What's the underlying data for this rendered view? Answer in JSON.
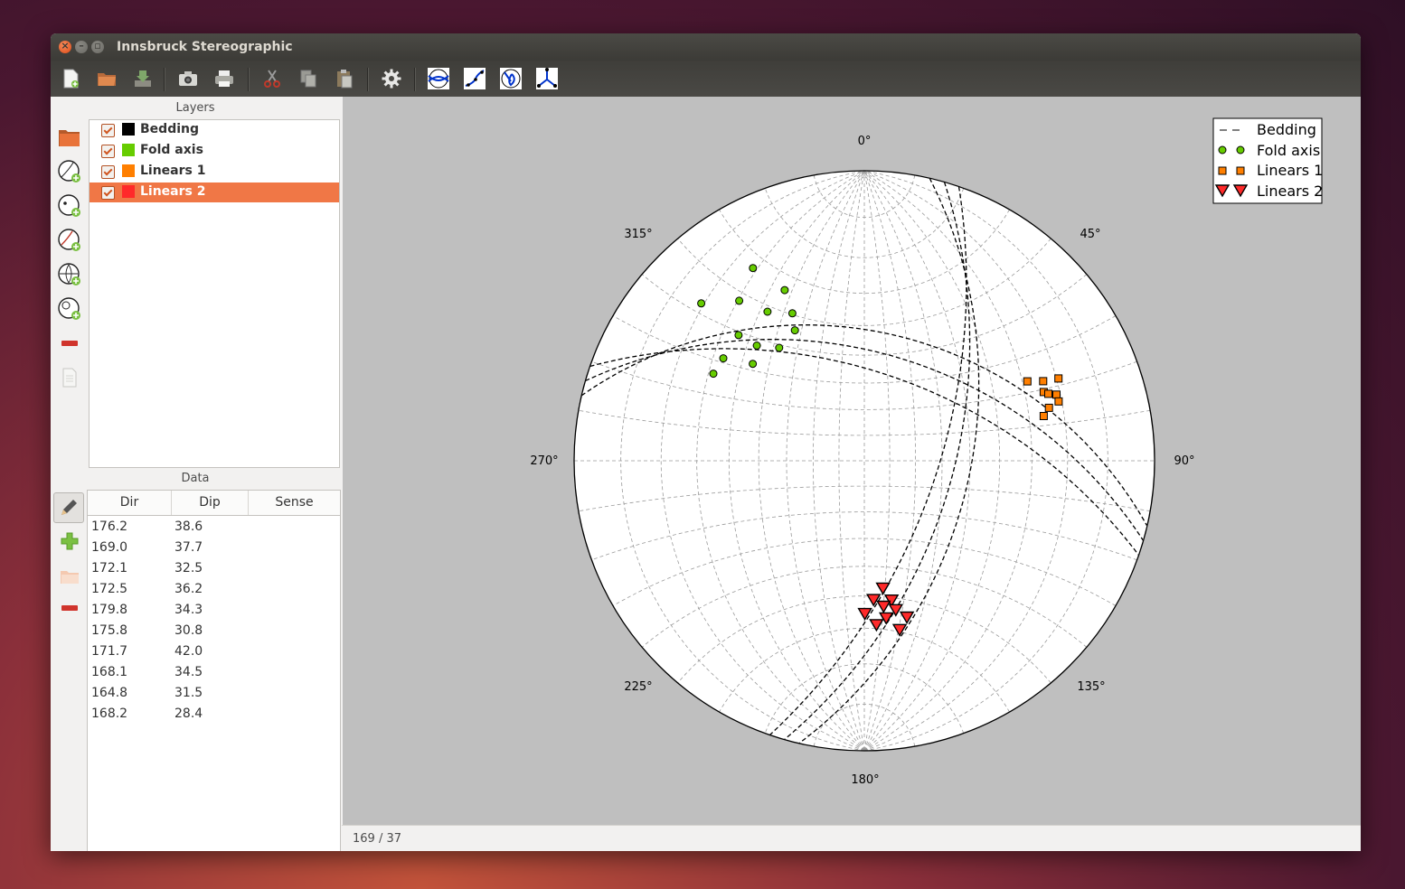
{
  "window": {
    "title": "Innsbruck Stereographic"
  },
  "toolbar": {
    "buttons": [
      "new-file-icon",
      "open-folder-icon",
      "save-icon",
      "screenshot-camera-icon",
      "print-icon",
      "cut-scissors-icon",
      "copy-icon",
      "paste-icon",
      "settings-gear-icon",
      "plane-intersection-icon",
      "line-fit-icon",
      "small-circle-icon",
      "eigenvector-icon"
    ]
  },
  "layers_panel": {
    "label": "Layers",
    "items": [
      {
        "name": "Bedding",
        "color": "#000000",
        "checked": true,
        "selected": false
      },
      {
        "name": "Fold axis",
        "color": "#66cc00",
        "checked": true,
        "selected": false
      },
      {
        "name": "Linears 1",
        "color": "#ff7f00",
        "checked": true,
        "selected": false
      },
      {
        "name": "Linears 2",
        "color": "#ff2a2a",
        "checked": true,
        "selected": true
      }
    ]
  },
  "data_panel": {
    "label": "Data",
    "columns": [
      "Dir",
      "Dip",
      "Sense"
    ],
    "rows": [
      [
        "176.2",
        "38.6",
        ""
      ],
      [
        "169.0",
        "37.7",
        ""
      ],
      [
        "172.1",
        "32.5",
        ""
      ],
      [
        "172.5",
        "36.2",
        ""
      ],
      [
        "179.8",
        "34.3",
        ""
      ],
      [
        "175.8",
        "30.8",
        ""
      ],
      [
        "171.7",
        "42.0",
        ""
      ],
      [
        "168.1",
        "34.5",
        ""
      ],
      [
        "164.8",
        "31.5",
        ""
      ],
      [
        "168.2",
        "28.4",
        ""
      ]
    ]
  },
  "stereonet": {
    "labels": [
      "0°",
      "45°",
      "90°",
      "135°",
      "180°",
      "225°",
      "270°",
      "315°"
    ],
    "legend": [
      "Bedding",
      "Fold axis",
      "Linears 1",
      "Linears 2"
    ],
    "colors": {
      "bedding": "#000000",
      "fold_axis": "#66cc00",
      "linears1": "#ff7f00",
      "linears2": "#ff2a2a"
    },
    "planes": [
      {
        "strike": 19,
        "dip": 62
      },
      {
        "strike": 16,
        "dip": 56
      },
      {
        "strike": 13,
        "dip": 50
      },
      {
        "strike": 283,
        "dip": 42
      },
      {
        "strike": 286,
        "dip": 49
      },
      {
        "strike": 289,
        "dip": 56
      }
    ],
    "fold_axis": [
      [
        330,
        15
      ],
      [
        322,
        20
      ],
      [
        314,
        14
      ],
      [
        335,
        24
      ],
      [
        327,
        27
      ],
      [
        315,
        27
      ],
      [
        311,
        36
      ],
      [
        317,
        33
      ],
      [
        323,
        38
      ],
      [
        332,
        36
      ],
      [
        334,
        31
      ],
      [
        306,
        28
      ],
      [
        300,
        28
      ]
    ],
    "linears1": [
      [
        64,
        26
      ],
      [
        69,
        23
      ],
      [
        71,
        20
      ],
      [
        66,
        22
      ],
      [
        74,
        23
      ],
      [
        70,
        22
      ],
      [
        73,
        20
      ],
      [
        67,
        18
      ],
      [
        76,
        25
      ]
    ],
    "linears2": [
      [
        176.2,
        38.6
      ],
      [
        169.0,
        37.7
      ],
      [
        172.1,
        32.5
      ],
      [
        172.5,
        36.2
      ],
      [
        179.8,
        34.3
      ],
      [
        175.8,
        30.8
      ],
      [
        171.7,
        42.0
      ],
      [
        168.1,
        34.5
      ],
      [
        164.8,
        31.5
      ],
      [
        168.2,
        28.4
      ]
    ]
  },
  "status": {
    "text": "169 / 37"
  }
}
